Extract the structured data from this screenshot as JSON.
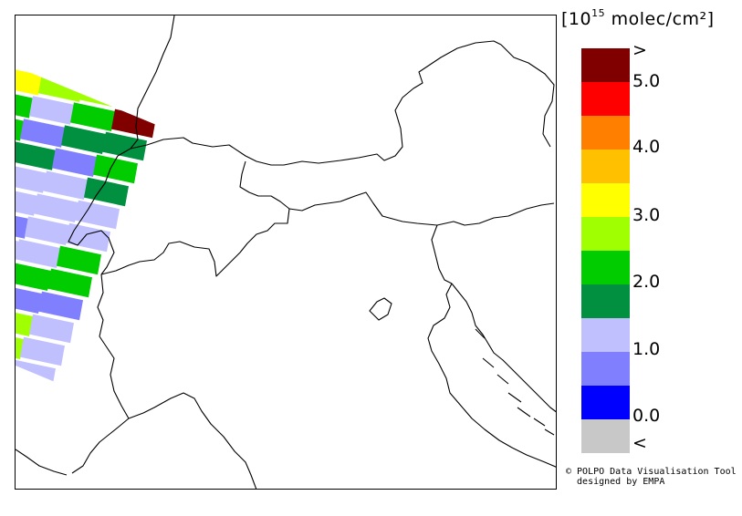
{
  "legend": {
    "units_main": "[10",
    "units_exp": "15",
    "units_rest": " molec/cm²]",
    "bins": [
      {
        "color": "#800000"
      },
      {
        "color": "#ff0000"
      },
      {
        "color": "#ff8000"
      },
      {
        "color": "#ffc000"
      },
      {
        "color": "#ffff00"
      },
      {
        "color": "#a0ff00"
      },
      {
        "color": "#00cc00"
      },
      {
        "color": "#009040"
      },
      {
        "color": "#c0c0ff"
      },
      {
        "color": "#8080ff"
      },
      {
        "color": "#0000ff"
      },
      {
        "color": "#c8c8c8"
      }
    ],
    "tick_labels": [
      ">",
      "5.0",
      "4.0",
      "3.0",
      "2.0",
      "1.0",
      "0.0",
      "<"
    ]
  },
  "credit": {
    "line1": "© POLPO Data Visualisation Tool",
    "line2": "  designed by EMPA"
  },
  "swath_pixels": [
    [
      "yellow",
      "#ffff00"
    ],
    [
      "lightgreen",
      "#a0ff00"
    ],
    [
      "darkred",
      "#800000"
    ]
  ]
}
